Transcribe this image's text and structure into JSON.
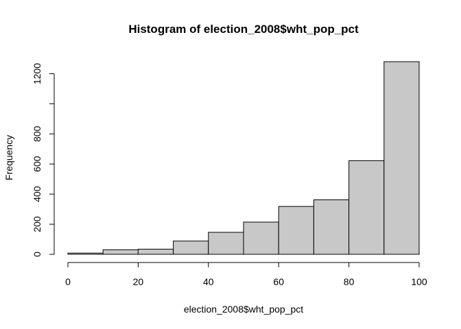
{
  "chart_data": {
    "type": "bar",
    "title": "Histogram of election_2008$wht_pop_pct",
    "xlabel": "election_2008$wht_pop_pct",
    "ylabel": "Frequency",
    "bins": [
      {
        "start": 0,
        "end": 10,
        "count": 8
      },
      {
        "start": 10,
        "end": 20,
        "count": 30
      },
      {
        "start": 20,
        "end": 30,
        "count": 34
      },
      {
        "start": 30,
        "end": 40,
        "count": 88
      },
      {
        "start": 40,
        "end": 50,
        "count": 146
      },
      {
        "start": 50,
        "end": 60,
        "count": 214
      },
      {
        "start": 60,
        "end": 70,
        "count": 318
      },
      {
        "start": 70,
        "end": 80,
        "count": 362
      },
      {
        "start": 80,
        "end": 90,
        "count": 622
      },
      {
        "start": 90,
        "end": 100,
        "count": 1280
      }
    ],
    "xlim": [
      0,
      100
    ],
    "ylim": [
      0,
      1280
    ],
    "x_ticks": [
      0,
      20,
      40,
      60,
      80,
      100
    ],
    "y_ticks": [
      0,
      200,
      400,
      600,
      800,
      1000,
      1200
    ],
    "y_tick_labels": [
      "0",
      "200",
      "400",
      "600",
      "800",
      "",
      "1200"
    ],
    "bar_color": "#c8c8c8",
    "grid": false
  }
}
